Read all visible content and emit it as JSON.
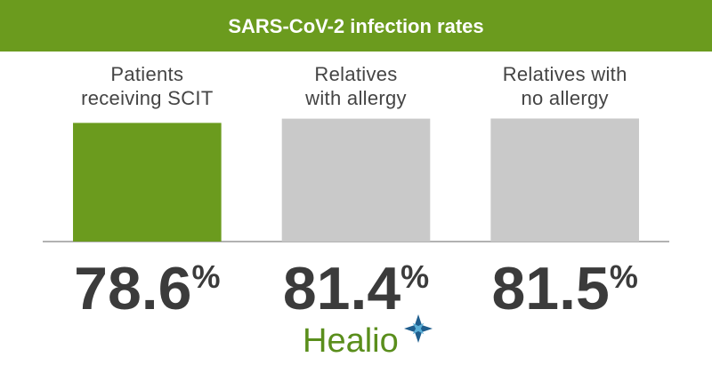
{
  "chart_data": {
    "type": "bar",
    "title": "SARS-CoV-2 infection rates",
    "categories": [
      "Patients\nreceiving SCIT",
      "Relatives\nwith allergy",
      "Relatives with\nno allergy"
    ],
    "values": [
      78.6,
      81.4,
      81.5
    ],
    "value_labels": [
      "78.6%",
      "81.4%",
      "81.5%"
    ],
    "colors": [
      "#6b9b1e",
      "#c9c9c9",
      "#c9c9c9"
    ],
    "ylim": [
      0,
      100
    ]
  },
  "brand": "Healio"
}
